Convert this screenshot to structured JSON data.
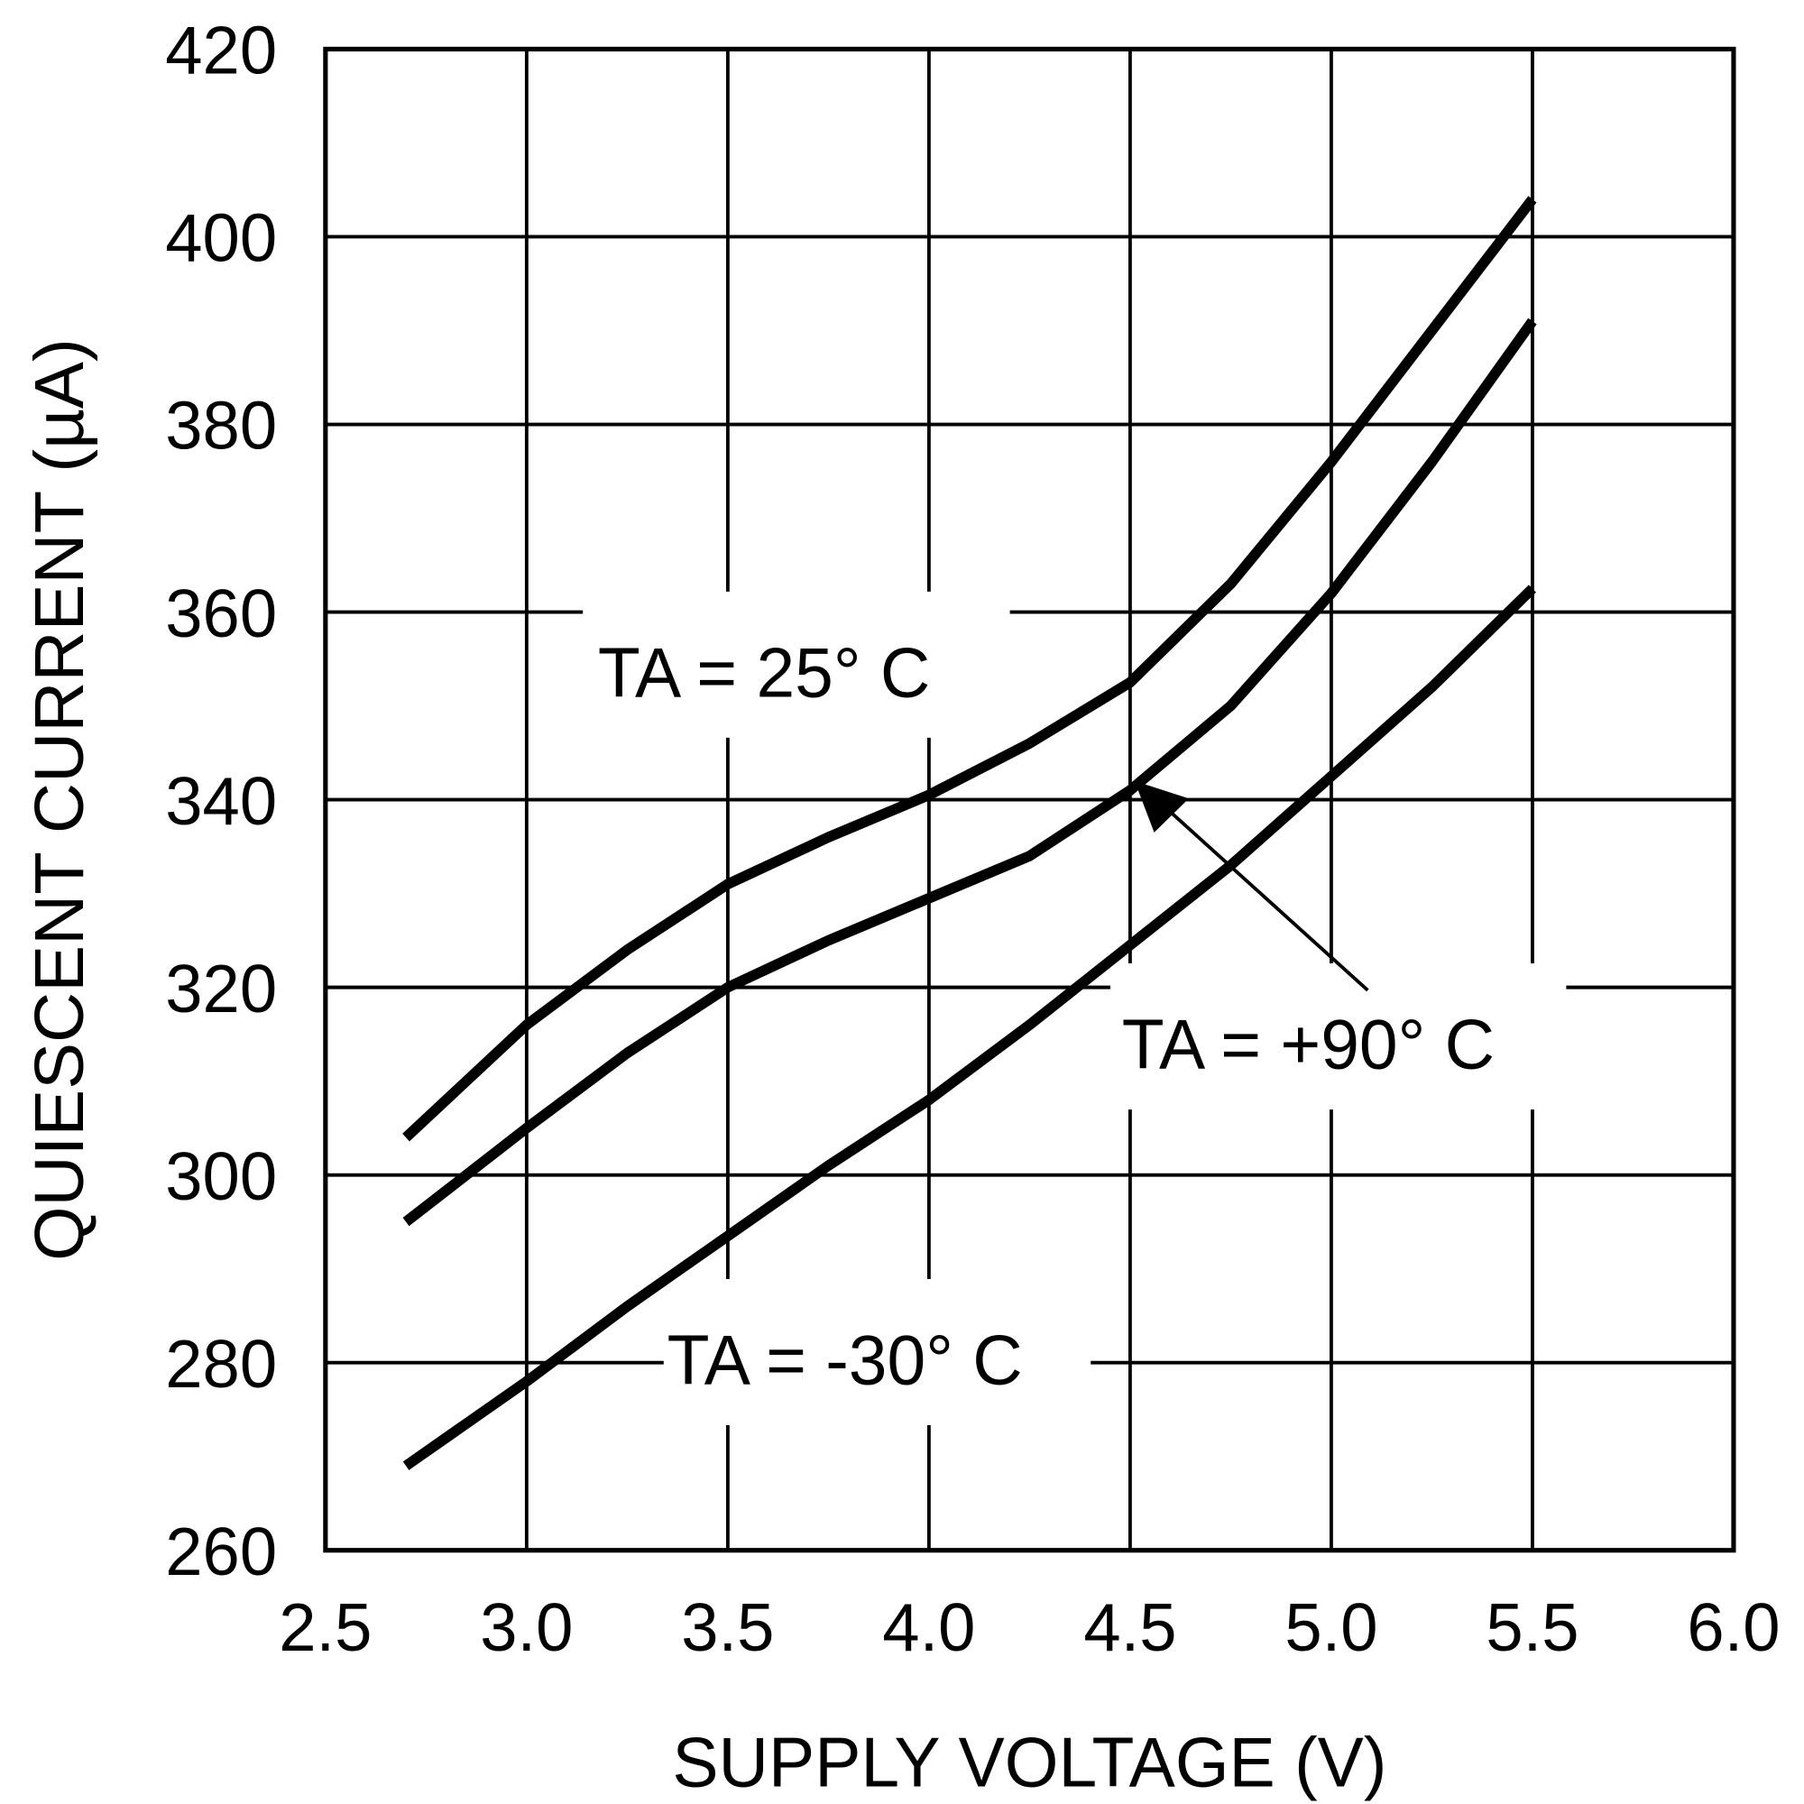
{
  "chart_data": {
    "type": "line",
    "x_label": "SUPPLY VOLTAGE (V)",
    "y_label": "QUIESCENT CURRENT (µA)",
    "xlim": [
      2.5,
      6.0
    ],
    "xticks": [
      2.5,
      {
        "value": 3,
        "label": "3.0"
      },
      3.5,
      {
        "value": 4,
        "label": "4.0"
      },
      4.5,
      {
        "value": 5,
        "label": "5.0"
      },
      5.5,
      {
        "value": 6,
        "label": "6.0"
      }
    ],
    "ylim": [
      260,
      420
    ],
    "yticks": [
      260,
      280,
      300,
      320,
      340,
      360,
      380,
      400,
      420
    ],
    "grid": true,
    "x": [
      2.7,
      3.0,
      3.25,
      3.5,
      3.75,
      4.0,
      4.25,
      4.5,
      4.75,
      5.0,
      5.25,
      5.5
    ],
    "series": [
      {
        "name": "TA = 25° C",
        "color": "#000000",
        "values": [
          304,
          316,
          324,
          331,
          336,
          340.5,
          346,
          352.5,
          363,
          376,
          390,
          404
        ]
      },
      {
        "name": "TA = +90° C",
        "color": "#000000",
        "values": [
          295,
          305,
          313,
          320,
          325,
          329.5,
          334,
          341,
          350,
          362,
          376,
          391
        ]
      },
      {
        "name": "TA = -30° C",
        "color": "#000000",
        "values": [
          269,
          278,
          286,
          293.5,
          301,
          308,
          316,
          324.5,
          333,
          342.5,
          352,
          362.5
        ]
      }
    ]
  }
}
